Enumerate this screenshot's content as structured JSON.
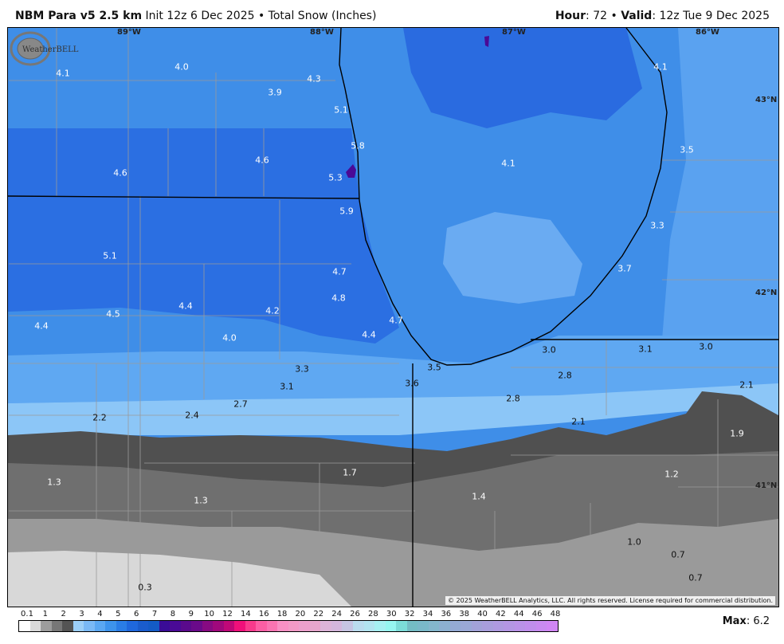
{
  "header": {
    "model": "NBM Para v5 2.5 km",
    "init": "Init 12z 6 Dec 2025 • Total Snow (Inches)",
    "hour_label": "Hour",
    "hour_value": ": 72 • ",
    "valid_label": "Valid",
    "valid_value": ": 12z Tue 9 Dec 2025"
  },
  "map": {
    "longitudes": [
      "89°W",
      "88°W",
      "87°W",
      "86°W"
    ],
    "latitudes": [
      "43°N",
      "42°N",
      "41°N"
    ],
    "snow_labels": [
      "4.1",
      "4.0",
      "3.9",
      "4.3",
      "5.1",
      "5.8",
      "5.3",
      "4.6",
      "4.6",
      "5.9",
      "4.1",
      "4.1",
      "3.5",
      "3.3",
      "3.7",
      "5.1",
      "4.7",
      "4.8",
      "4.4",
      "4.5",
      "4.4",
      "4.2",
      "4.0",
      "4.7",
      "4.4",
      "3.3",
      "3.1",
      "3.6",
      "3.5",
      "3.0",
      "3.1",
      "3.0",
      "2.8",
      "2.8",
      "2.1",
      "2.2",
      "2.4",
      "2.7",
      "2.1",
      "1.9",
      "1.3",
      "1.3",
      "1.7",
      "1.4",
      "1.2",
      "1.0",
      "0.7",
      "0.7",
      "0.3"
    ],
    "logo_text": "WeatherBELL",
    "copyright": "© 2025 WeatherBELL Analytics, LLC. All rights reserved. License required for commercial distribution."
  },
  "colorbar": {
    "labels": [
      "0.1",
      "1",
      "2",
      "3",
      "4",
      "5",
      "6",
      "7",
      "8",
      "9",
      "10",
      "12",
      "14",
      "16",
      "18",
      "20",
      "22",
      "24",
      "26",
      "28",
      "30",
      "32",
      "34",
      "36",
      "38",
      "40",
      "42",
      "44",
      "46",
      "48"
    ],
    "colors": [
      "#ffffff",
      "#d9d9d9",
      "#9c9c9c",
      "#777777",
      "#545454",
      "#9ccff8",
      "#7ab9f6",
      "#5aa7f2",
      "#3d93ec",
      "#2a7de6",
      "#1f68dd",
      "#1a5ccc",
      "#145bc6",
      "#3a0c96",
      "#4a0a96",
      "#5a0a8c",
      "#6a0a8a",
      "#870a82",
      "#a0087c",
      "#c00878",
      "#f0107a",
      "#f83a8c",
      "#fc5ea4",
      "#fa74b2",
      "#f890c4",
      "#f29ac6",
      "#eca0cc",
      "#e6a6cc",
      "#dcb4d8",
      "#d4b6dc",
      "#c6c4e2",
      "#badcee",
      "#b2e4f0",
      "#a6f0f2",
      "#96f6f0",
      "#7cdcd8",
      "#74bcc4",
      "#7ab8c8",
      "#84b6cc",
      "#8cb0d0",
      "#94aad4",
      "#9aa8d6",
      "#a2a2d8",
      "#a89edc",
      "#ae9ae0",
      "#b496e4",
      "#ba92e8",
      "#c08eec",
      "#c88af0",
      "#d086f4"
    ],
    "max_label": "Max",
    "max_value": ": 6.2"
  }
}
